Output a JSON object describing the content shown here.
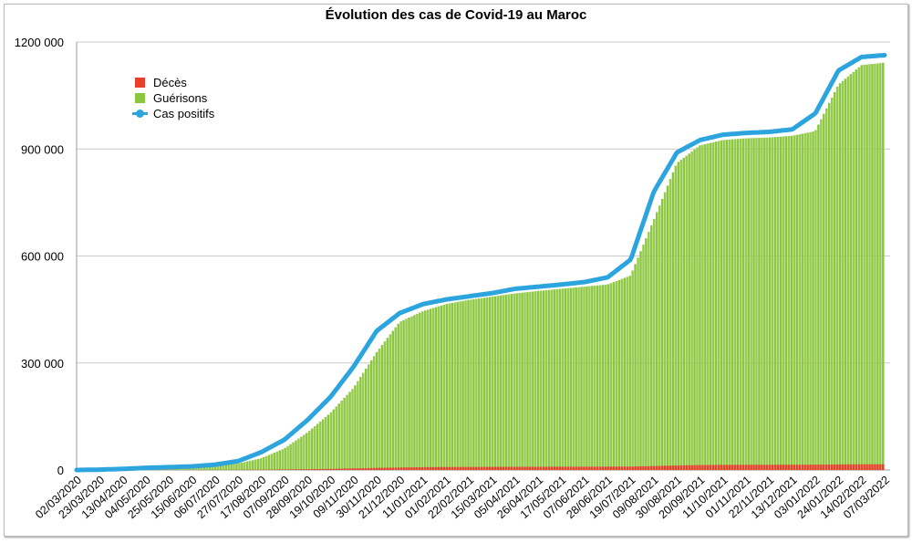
{
  "chart_data": {
    "type": "bar",
    "title": "Évolution des cas de Covid-19 au Maroc",
    "xlabel": "",
    "ylabel": "",
    "ylim": [
      0,
      1200000
    ],
    "yticks": [
      0,
      300000,
      600000,
      900000,
      1200000
    ],
    "ytick_labels": [
      "0",
      "300 000",
      "600 000",
      "900 000",
      "1200 000"
    ],
    "grid": true,
    "legend_position": "top-left",
    "categories": [
      "02/03/2020",
      "23/03/2020",
      "13/04/2020",
      "04/05/2020",
      "25/05/2020",
      "15/06/2020",
      "06/07/2020",
      "27/07/2020",
      "17/08/2020",
      "07/09/2020",
      "28/09/2020",
      "19/10/2020",
      "09/11/2020",
      "30/11/2020",
      "21/12/2020",
      "11/01/2021",
      "01/02/2021",
      "22/02/2021",
      "15/03/2021",
      "05/04/2021",
      "26/04/2021",
      "17/05/2021",
      "07/06/2021",
      "28/06/2021",
      "19/07/2021",
      "09/08/2021",
      "30/08/2021",
      "20/09/2021",
      "11/10/2021",
      "01/11/2021",
      "22/11/2021",
      "13/12/2021",
      "03/01/2022",
      "24/01/2022",
      "14/02/2022",
      "07/03/2022"
    ],
    "series": [
      {
        "name": "Décès",
        "kind": "bar",
        "color": "#e8402a",
        "values": [
          0,
          2,
          130,
          180,
          200,
          210,
          230,
          330,
          700,
          1400,
          2100,
          3100,
          4500,
          5800,
          7000,
          7900,
          8300,
          8500,
          8700,
          8900,
          9000,
          9100,
          9200,
          9300,
          9600,
          11000,
          12600,
          13900,
          14400,
          14600,
          14700,
          14800,
          14900,
          15600,
          16000,
          16000
        ]
      },
      {
        "name": "Guérisons",
        "kind": "bar",
        "color": "#8cc63f",
        "values": [
          0,
          10,
          300,
          2500,
          5000,
          8000,
          11000,
          18000,
          33000,
          60000,
          105000,
          160000,
          230000,
          330000,
          415000,
          445000,
          465000,
          477000,
          486000,
          495000,
          502000,
          508000,
          514000,
          520000,
          545000,
          700000,
          860000,
          910000,
          925000,
          930000,
          932000,
          937000,
          950000,
          1080000,
          1135000,
          1142000
        ]
      },
      {
        "name": "Cas positifs",
        "kind": "line",
        "color": "#2ca5df",
        "values": [
          0,
          1000,
          3000,
          6000,
          8000,
          10000,
          15000,
          25000,
          50000,
          85000,
          140000,
          205000,
          290000,
          390000,
          440000,
          465000,
          478000,
          487000,
          496000,
          508000,
          514000,
          520000,
          527000,
          540000,
          590000,
          780000,
          890000,
          925000,
          940000,
          945000,
          948000,
          955000,
          1000000,
          1120000,
          1158000,
          1163000
        ]
      }
    ]
  }
}
